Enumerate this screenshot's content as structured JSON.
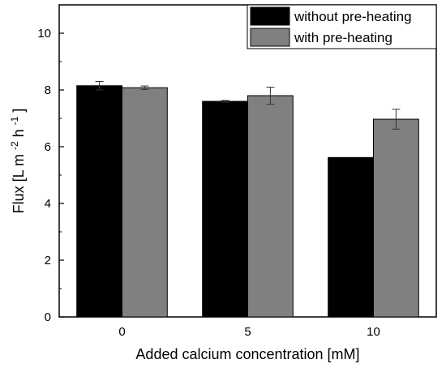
{
  "chart_data": {
    "type": "bar",
    "categories": [
      "0",
      "5",
      "10"
    ],
    "series": [
      {
        "name": "without pre-heating",
        "color": "#000000",
        "values": [
          8.15,
          7.6,
          5.62
        ],
        "errors": [
          0.15,
          0.03,
          0.0
        ]
      },
      {
        "name": "with pre-heating",
        "color": "#808080",
        "values": [
          8.08,
          7.8,
          6.97
        ],
        "errors": [
          0.06,
          0.3,
          0.35
        ]
      }
    ],
    "xlabel": "Added calcium concentration [mM]",
    "ylabel": {
      "part1": "Flux [L m",
      "sup1": "-2",
      "part2": " h",
      "sup2": "-1",
      "part3": "]"
    },
    "ylim": [
      0,
      11
    ],
    "yticks": [
      0,
      2,
      4,
      6,
      8,
      10
    ],
    "grid": false,
    "legend_position": "top-right"
  }
}
